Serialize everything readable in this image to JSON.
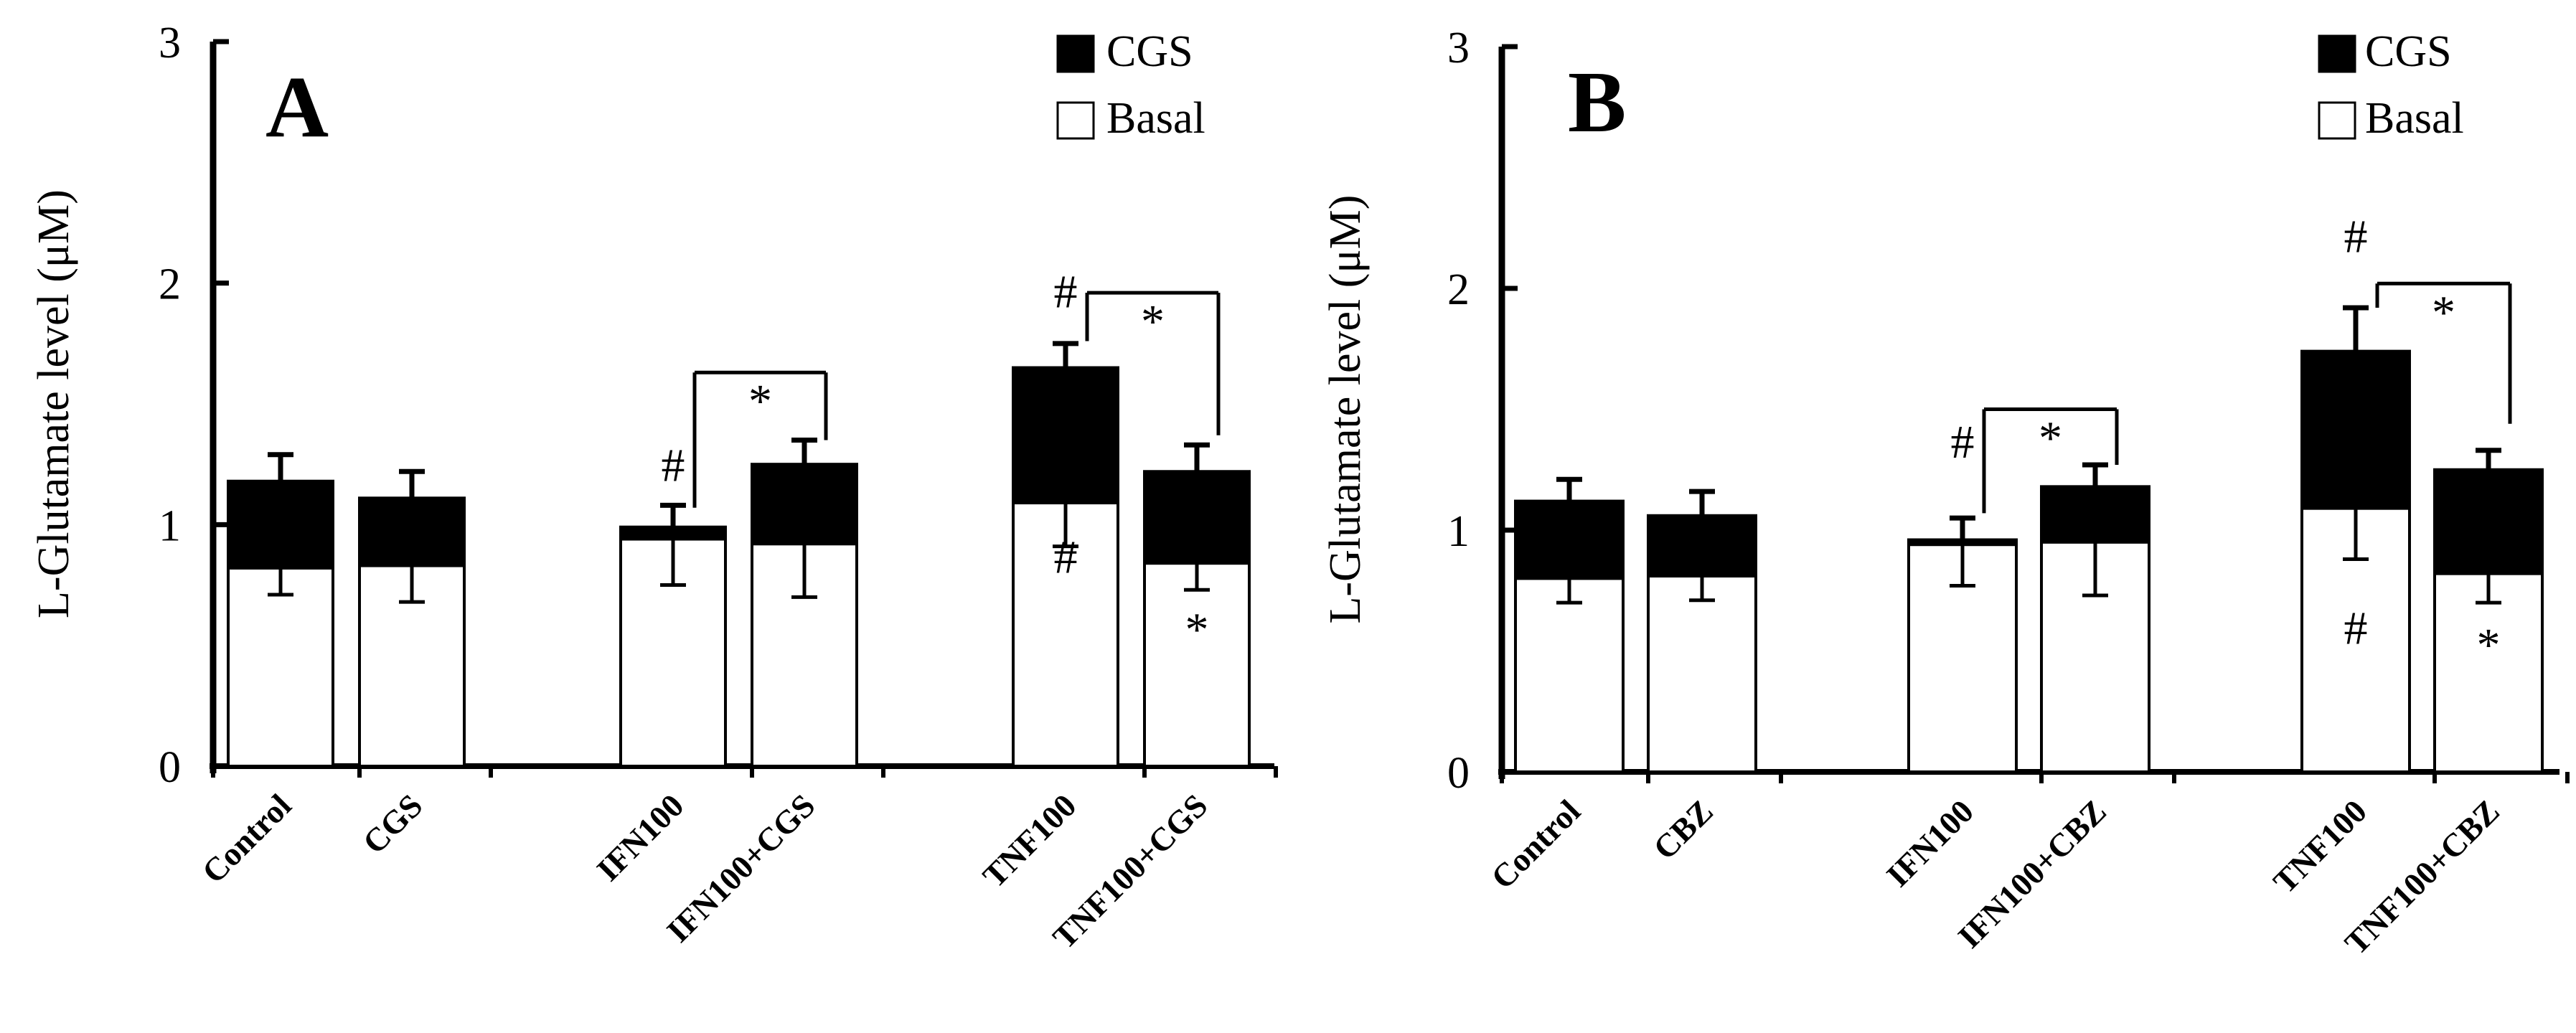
{
  "chart_data": [
    {
      "type": "bar",
      "panel": "A",
      "ylabel": "L-Glutamate level (μM)",
      "ylim": [
        0,
        3
      ],
      "yticks": [
        0,
        1,
        2,
        3
      ],
      "grid": false,
      "legend": {
        "placement": "top-right",
        "entries": [
          "CGS",
          "Basal"
        ]
      },
      "categories": [
        "Control",
        "CGS",
        "IFN100",
        "IFN100+CGS",
        "TNF100",
        "TNF100+CGS"
      ],
      "gaps_after": [
        1,
        3
      ],
      "series": [
        {
          "name": "Basal",
          "color": "#ffffff",
          "values": [
            0.82,
            0.83,
            0.94,
            0.92,
            1.09,
            0.84
          ],
          "error_low": [
            0.71,
            0.68,
            0.75,
            0.7,
            0.91,
            0.73
          ]
        },
        {
          "name": "CGS",
          "color": "#000000",
          "values": [
            1.18,
            1.11,
            0.99,
            1.25,
            1.65,
            1.22
          ],
          "error_high": [
            1.29,
            1.22,
            1.08,
            1.35,
            1.75,
            1.33
          ]
        }
      ],
      "annotations": [
        {
          "text": "#",
          "category": 2,
          "value": 1.18
        },
        {
          "text": "#",
          "category": 4,
          "value": 1.9
        },
        {
          "text": "#",
          "category": 4,
          "value": 0.8
        },
        {
          "text": "*",
          "category": 5,
          "value": 0.5
        }
      ],
      "brackets": [
        {
          "from": 2,
          "to": 3,
          "y": 1.63,
          "drop_to": [
            1.07,
            1.35
          ],
          "label": "*"
        },
        {
          "from": 4,
          "to": 5,
          "y": 1.96,
          "drop_to": [
            1.76,
            1.37
          ],
          "label": "*"
        }
      ]
    },
    {
      "type": "bar",
      "panel": "B",
      "ylabel": "L-Glutamate level (μM)",
      "ylim": [
        0,
        3
      ],
      "yticks": [
        0,
        1,
        2,
        3
      ],
      "grid": false,
      "legend": {
        "placement": "top-right",
        "entries": [
          "CGS",
          "Basal"
        ]
      },
      "categories": [
        "Control",
        "CBZ",
        "IFN100",
        "IFN100+CBZ",
        "TNF100",
        "TNF100+CBZ"
      ],
      "gaps_after": [
        1,
        3
      ],
      "series": [
        {
          "name": "Basal",
          "color": "#ffffff",
          "values": [
            0.8,
            0.81,
            0.94,
            0.95,
            1.09,
            0.82
          ],
          "error_low": [
            0.7,
            0.71,
            0.77,
            0.73,
            0.88,
            0.7
          ]
        },
        {
          "name": "CGS",
          "color": "#000000",
          "values": [
            1.12,
            1.06,
            0.96,
            1.18,
            1.74,
            1.25
          ],
          "error_high": [
            1.21,
            1.16,
            1.05,
            1.27,
            1.92,
            1.33
          ]
        }
      ],
      "annotations": [
        {
          "text": "#",
          "category": 2,
          "value": 1.3
        },
        {
          "text": "#",
          "category": 4,
          "value": 2.15
        },
        {
          "text": "#",
          "category": 4,
          "value": 0.53
        },
        {
          "text": "*",
          "category": 5,
          "value": 0.46
        }
      ],
      "brackets": [
        {
          "from": 2,
          "to": 3,
          "y": 1.5,
          "drop_to": [
            1.07,
            1.27
          ],
          "label": "*"
        },
        {
          "from": 4,
          "to": 5,
          "y": 2.02,
          "drop_to": [
            1.92,
            1.44
          ],
          "label": "*"
        }
      ]
    }
  ]
}
